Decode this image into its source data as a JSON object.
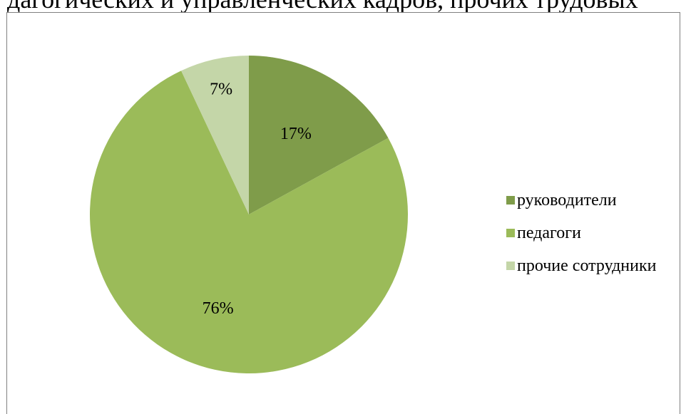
{
  "header_text": "дагогических и управленческих кадров, прочих трудовых",
  "chart_data": {
    "type": "pie",
    "title": "",
    "slices": [
      {
        "label": "руководители",
        "value": 17,
        "display": "17%",
        "color": "#7f9c4a"
      },
      {
        "label": "педагоги",
        "value": 76,
        "display": "76%",
        "color": "#9bbb59"
      },
      {
        "label": "прочие сотрудники",
        "value": 7,
        "display": "7%",
        "color": "#c4d6a8"
      }
    ],
    "legend_position": "right"
  }
}
